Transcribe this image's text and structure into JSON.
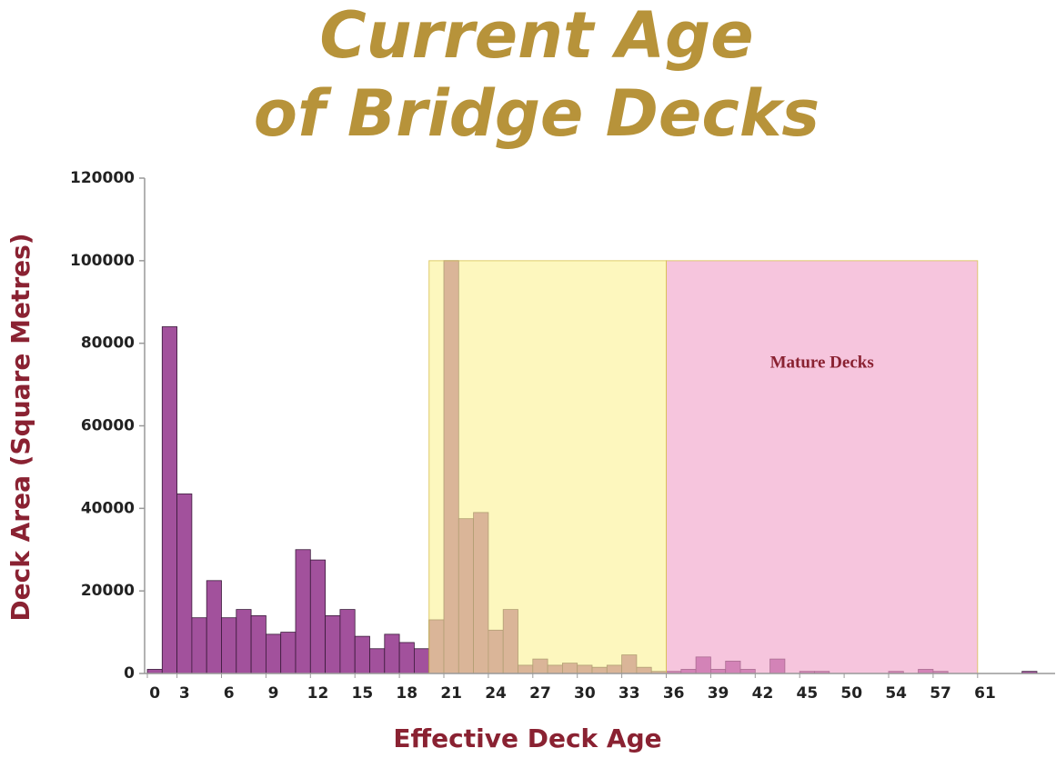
{
  "chart_data": {
    "type": "bar",
    "title": [
      "Current Age",
      "of Bridge Decks"
    ],
    "x_label": "Effective Deck Age",
    "y_label": "Deck Area (Square Metres)",
    "categories": [
      "0",
      null,
      "3",
      null,
      null,
      "6",
      null,
      null,
      "9",
      null,
      null,
      "12",
      null,
      null,
      "15",
      null,
      null,
      "18",
      null,
      null,
      "21",
      null,
      null,
      "24",
      null,
      null,
      "27",
      null,
      null,
      "30",
      null,
      null,
      "33",
      null,
      null,
      "36",
      null,
      null,
      "39",
      null,
      null,
      "42",
      null,
      null,
      "45",
      null,
      null,
      "50",
      null,
      null,
      "54",
      null,
      null,
      "57",
      null,
      null,
      "61",
      null,
      null,
      null,
      null
    ],
    "values": [
      1000,
      84000,
      43500,
      13500,
      22500,
      13500,
      15500,
      14000,
      9500,
      10000,
      30000,
      27500,
      14000,
      15500,
      9000,
      6000,
      9500,
      7500,
      6000,
      13000,
      100000,
      37500,
      39000,
      10500,
      15500,
      2000,
      3500,
      2000,
      2500,
      2000,
      1500,
      2000,
      4500,
      1500,
      500,
      500,
      1000,
      4000,
      1000,
      3000,
      1000,
      0,
      3500,
      0,
      500,
      500,
      0,
      0,
      0,
      0,
      500,
      0,
      1000,
      500,
      0,
      0,
      0,
      0,
      0,
      500,
      0
    ],
    "color": "#a2519c",
    "ylim": [
      0,
      120000
    ],
    "yticks": [
      0,
      20000,
      40000,
      60000,
      80000,
      100000,
      120000
    ],
    "grid": false,
    "bands": [
      {
        "color": "#fbf296",
        "start": 19,
        "end": 35,
        "top": 100000
      },
      {
        "color": "#f0a2c8",
        "start": 35,
        "end": 56,
        "top": 100000,
        "label": "Mature Decks"
      }
    ]
  }
}
